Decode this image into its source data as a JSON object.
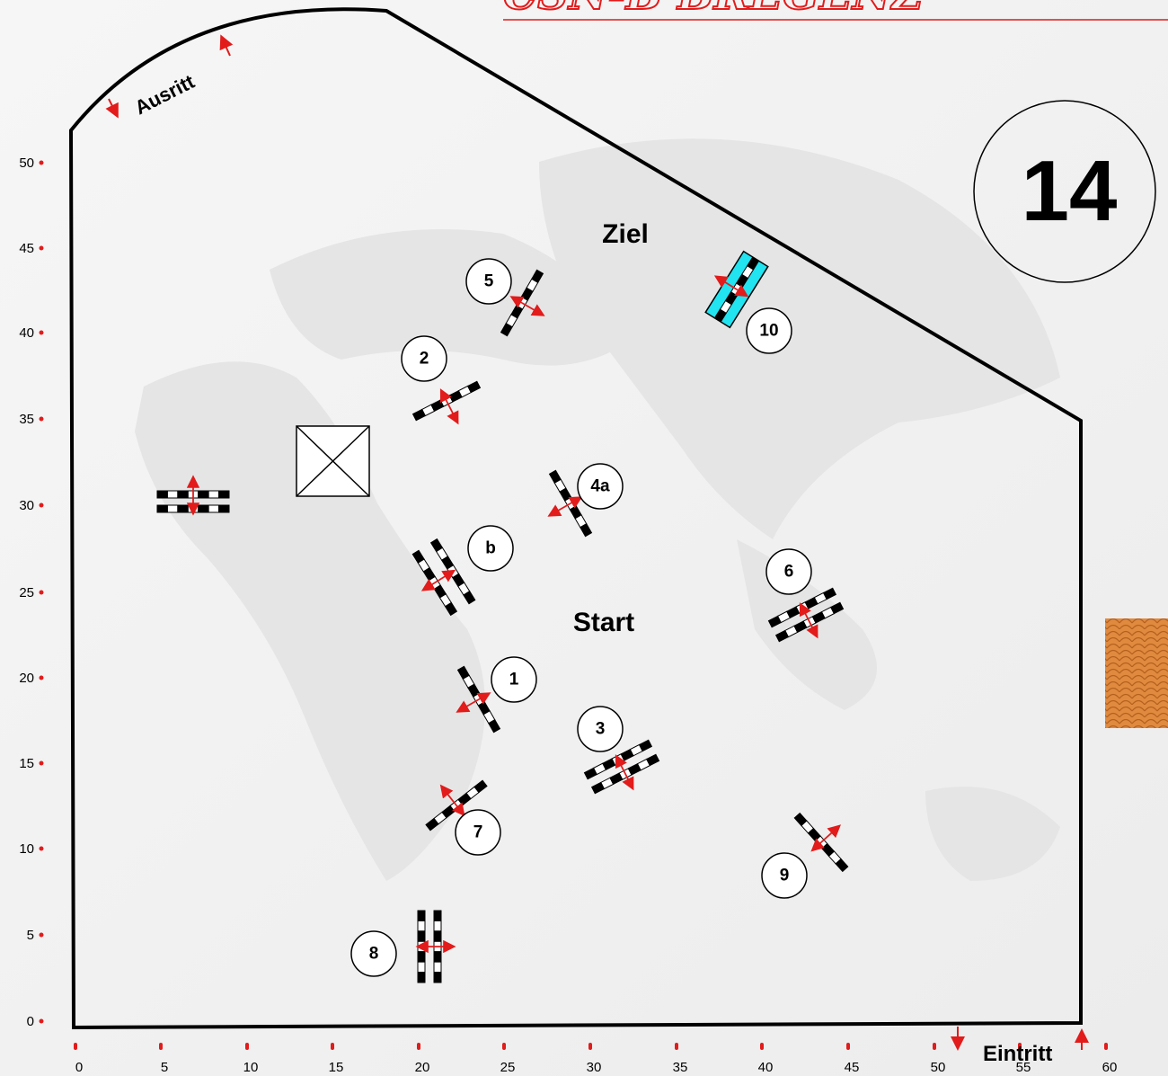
{
  "course": {
    "number": "14",
    "header_text": "CSN-B BREGENZ",
    "labels": {
      "ziel": "Ziel",
      "start": "Start",
      "ausritt": "Ausritt",
      "einritt": "Eintritt"
    }
  },
  "axes": {
    "x_ticks": [
      "0",
      "5",
      "10",
      "15",
      "20",
      "25",
      "30",
      "35",
      "40",
      "45",
      "50",
      "55",
      "60"
    ],
    "y_ticks": [
      "0",
      "5",
      "10",
      "15",
      "20",
      "25",
      "30",
      "35",
      "40",
      "45",
      "50"
    ]
  },
  "obstacles": [
    {
      "id": "1",
      "label": "1"
    },
    {
      "id": "2",
      "label": "2"
    },
    {
      "id": "3",
      "label": "3"
    },
    {
      "id": "4a",
      "label": "4a"
    },
    {
      "id": "4b",
      "label": "b"
    },
    {
      "id": "5",
      "label": "5"
    },
    {
      "id": "6",
      "label": "6"
    },
    {
      "id": "7",
      "label": "7"
    },
    {
      "id": "8",
      "label": "8"
    },
    {
      "id": "9",
      "label": "9"
    },
    {
      "id": "10",
      "label": "10"
    }
  ],
  "colors": {
    "arrow": "#e21b1b",
    "water_jump": "#22e3f0",
    "wall_pattern": "#d9843a",
    "outline": "#000000"
  }
}
